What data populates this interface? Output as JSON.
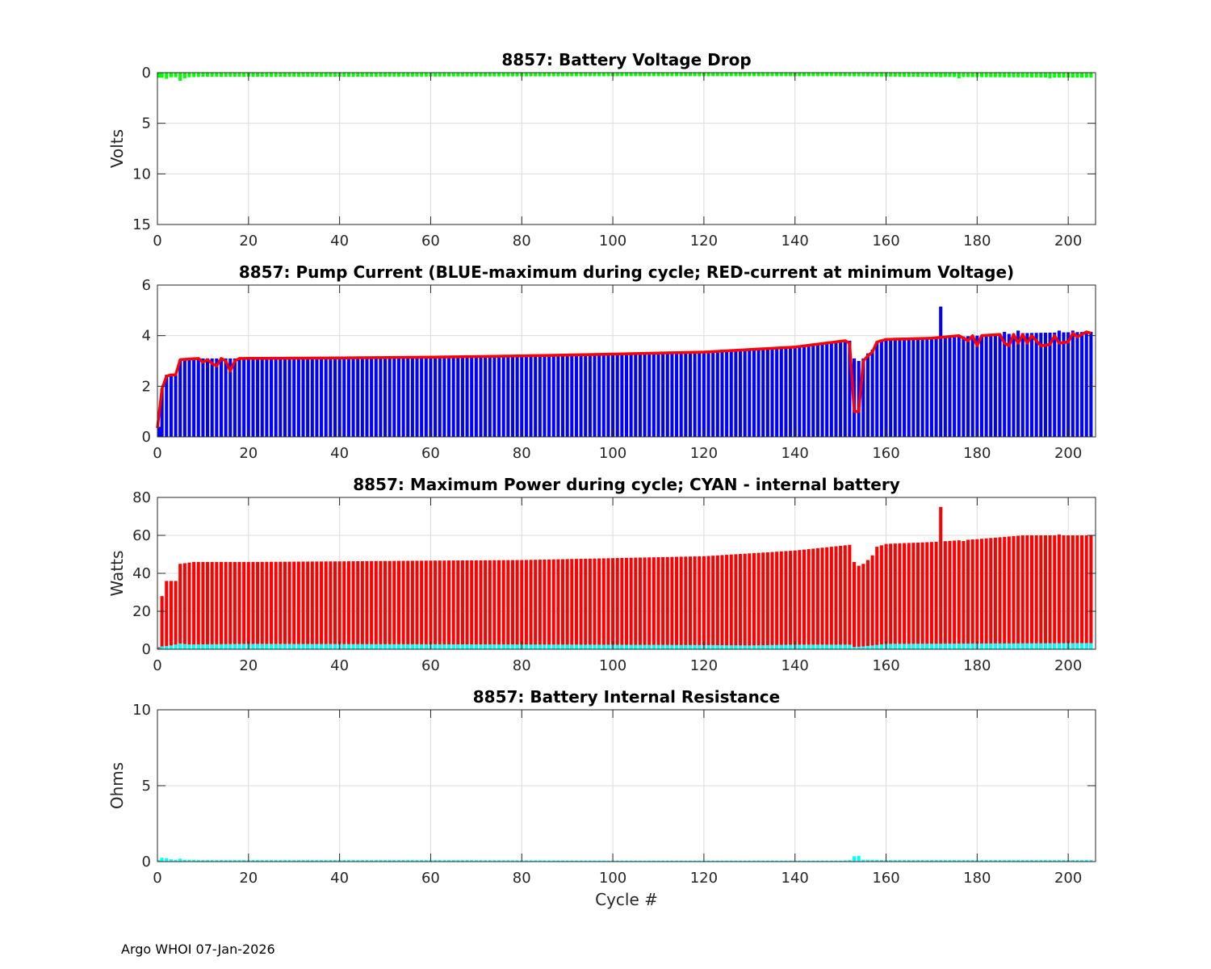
{
  "footer": "Argo WHOI 07-Jan-2026",
  "colors": {
    "green": "#00ff00",
    "blue": "#0000ff",
    "red": "#ff0000",
    "cyan": "#00ffff",
    "grid": "#dcdcdc",
    "axis": "#262626"
  },
  "chart_data": [
    {
      "type": "bar",
      "title": "8857: Battery Voltage Drop",
      "xlabel": "",
      "ylabel": "Volts",
      "xlim": [
        0,
        206
      ],
      "ylim": [
        0,
        15
      ],
      "y_reversed": true,
      "xticks": [
        0,
        20,
        40,
        60,
        80,
        100,
        120,
        140,
        160,
        180,
        200
      ],
      "yticks": [
        0,
        5,
        10,
        15
      ],
      "grid": true,
      "series_profile": {
        "name": "",
        "color": "green",
        "base": [
          [
            1,
            0.5
          ],
          [
            2,
            0.6
          ],
          [
            3,
            0.45
          ],
          [
            4,
            0.45
          ],
          [
            5,
            0.8
          ],
          [
            6,
            0.55
          ],
          [
            7,
            0.45
          ],
          [
            10,
            0.4
          ],
          [
            40,
            0.4
          ],
          [
            100,
            0.35
          ],
          [
            150,
            0.35
          ],
          [
            165,
            0.4
          ],
          [
            205,
            0.5
          ]
        ],
        "overrides": [
          [
            172,
            0.45
          ],
          [
            176,
            0.55
          ],
          [
            196,
            0.55
          ]
        ]
      }
    },
    {
      "type": "bar",
      "title": "8857: Pump Current (BLUE-maximum during cycle; RED-current at minimum Voltage)",
      "xlabel": "",
      "ylabel": "",
      "xlim": [
        0,
        206
      ],
      "ylim": [
        0,
        6
      ],
      "y_reversed": false,
      "xticks": [
        0,
        20,
        40,
        60,
        80,
        100,
        120,
        140,
        160,
        180,
        200
      ],
      "yticks": [
        0,
        2,
        4,
        6
      ],
      "grid": true,
      "bar_profile": {
        "name": "BLUE-maximum during cycle",
        "color": "blue",
        "base": [
          [
            0,
            0.4
          ],
          [
            1,
            1.9
          ],
          [
            2,
            2.45
          ],
          [
            3,
            2.45
          ],
          [
            4,
            2.45
          ],
          [
            5,
            3.05
          ],
          [
            8,
            3.1
          ],
          [
            20,
            3.1
          ],
          [
            40,
            3.12
          ],
          [
            60,
            3.15
          ],
          [
            80,
            3.2
          ],
          [
            100,
            3.27
          ],
          [
            120,
            3.35
          ],
          [
            140,
            3.55
          ],
          [
            152,
            3.8
          ],
          [
            153,
            3.1
          ],
          [
            154,
            3.0
          ],
          [
            155,
            3.1
          ],
          [
            156,
            3.3
          ],
          [
            157,
            3.45
          ],
          [
            158,
            3.75
          ],
          [
            160,
            3.85
          ],
          [
            170,
            3.9
          ],
          [
            180,
            4.0
          ],
          [
            190,
            4.1
          ],
          [
            205,
            4.15
          ]
        ],
        "overrides": [
          [
            172,
            5.15
          ],
          [
            186,
            4.15
          ],
          [
            189,
            4.2
          ],
          [
            198,
            4.2
          ],
          [
            201,
            4.2
          ]
        ]
      },
      "line_profile": {
        "name": "RED-current at minimum Voltage",
        "color": "red",
        "base": [
          [
            0,
            0.35
          ],
          [
            1,
            1.9
          ],
          [
            2,
            2.4
          ],
          [
            3,
            2.45
          ],
          [
            4,
            2.45
          ],
          [
            5,
            3.05
          ],
          [
            9,
            3.1
          ],
          [
            10,
            2.95
          ],
          [
            11,
            3.05
          ],
          [
            12,
            2.9
          ],
          [
            13,
            2.8
          ],
          [
            14,
            3.1
          ],
          [
            15,
            3.0
          ],
          [
            16,
            2.6
          ],
          [
            17,
            3.0
          ],
          [
            18,
            3.1
          ],
          [
            40,
            3.12
          ],
          [
            60,
            3.15
          ],
          [
            80,
            3.2
          ],
          [
            100,
            3.27
          ],
          [
            120,
            3.35
          ],
          [
            140,
            3.55
          ],
          [
            151,
            3.8
          ],
          [
            152,
            3.7
          ],
          [
            153,
            1.0
          ],
          [
            154,
            1.0
          ],
          [
            155,
            3.0
          ],
          [
            156,
            3.2
          ],
          [
            157,
            3.35
          ],
          [
            158,
            3.75
          ],
          [
            160,
            3.85
          ],
          [
            170,
            3.9
          ],
          [
            176,
            4.0
          ],
          [
            178,
            3.8
          ],
          [
            179,
            4.0
          ],
          [
            180,
            3.6
          ],
          [
            181,
            4.0
          ],
          [
            185,
            4.05
          ],
          [
            186,
            3.7
          ],
          [
            187,
            3.6
          ],
          [
            188,
            4.05
          ],
          [
            189,
            3.7
          ],
          [
            190,
            4.05
          ],
          [
            191,
            3.7
          ],
          [
            192,
            4.0
          ],
          [
            194,
            3.6
          ],
          [
            196,
            3.65
          ],
          [
            197,
            4.0
          ],
          [
            198,
            3.7
          ],
          [
            200,
            3.75
          ],
          [
            201,
            4.1
          ],
          [
            202,
            3.95
          ],
          [
            204,
            4.15
          ],
          [
            205,
            4.1
          ]
        ]
      }
    },
    {
      "type": "bar",
      "title": "8857: Maximum Power during cycle; CYAN - internal battery",
      "xlabel": "",
      "ylabel": "Watts",
      "xlim": [
        0,
        206
      ],
      "ylim": [
        0,
        80
      ],
      "y_reversed": false,
      "xticks": [
        0,
        20,
        40,
        60,
        80,
        100,
        120,
        140,
        160,
        180,
        200
      ],
      "yticks": [
        0,
        20,
        40,
        60,
        80
      ],
      "grid": true,
      "bar_profile": {
        "name": "Maximum Power",
        "color": "red",
        "base": [
          [
            0,
            1
          ],
          [
            1,
            28
          ],
          [
            2,
            36
          ],
          [
            3,
            36
          ],
          [
            4,
            36
          ],
          [
            5,
            45
          ],
          [
            8,
            46
          ],
          [
            20,
            46
          ],
          [
            40,
            46.3
          ],
          [
            60,
            46.7
          ],
          [
            80,
            47
          ],
          [
            100,
            48
          ],
          [
            120,
            49
          ],
          [
            140,
            52
          ],
          [
            152,
            55
          ],
          [
            153,
            46
          ],
          [
            154,
            44
          ],
          [
            155,
            45
          ],
          [
            156,
            47
          ],
          [
            157,
            49.5
          ],
          [
            158,
            54
          ],
          [
            160,
            55.5
          ],
          [
            170,
            56.5
          ],
          [
            180,
            58
          ],
          [
            190,
            60
          ],
          [
            205,
            60
          ]
        ],
        "overrides": [
          [
            172,
            75
          ],
          [
            177,
            57
          ],
          [
            198,
            60.5
          ]
        ]
      },
      "line_profile": {
        "name": "CYAN - internal battery",
        "color": "cyan",
        "base": [
          [
            0,
            0.5
          ],
          [
            1,
            1.5
          ],
          [
            3,
            2
          ],
          [
            5,
            3
          ],
          [
            7,
            2.5
          ],
          [
            20,
            2.8
          ],
          [
            40,
            2.7
          ],
          [
            80,
            2.5
          ],
          [
            120,
            2.2
          ],
          [
            130,
            2.0
          ],
          [
            140,
            2.4
          ],
          [
            152,
            2.4
          ],
          [
            153,
            1.2
          ],
          [
            155,
            1.5
          ],
          [
            160,
            2.8
          ],
          [
            180,
            3.0
          ],
          [
            205,
            3.2
          ]
        ]
      }
    },
    {
      "type": "bar",
      "title": "8857: Battery Internal Resistance",
      "xlabel": "Cycle #",
      "ylabel": "Ohms",
      "xlim": [
        0,
        206
      ],
      "ylim": [
        0,
        10
      ],
      "y_reversed": false,
      "xticks": [
        0,
        20,
        40,
        60,
        80,
        100,
        120,
        140,
        160,
        180,
        200
      ],
      "yticks": [
        0,
        5,
        10
      ],
      "grid": true,
      "series_profile": {
        "name": "",
        "color": "cyan",
        "base": [
          [
            0,
            0.1
          ],
          [
            1,
            0.25
          ],
          [
            2,
            0.22
          ],
          [
            3,
            0.15
          ],
          [
            4,
            0.12
          ],
          [
            5,
            0.2
          ],
          [
            6,
            0.12
          ],
          [
            10,
            0.1
          ],
          [
            60,
            0.1
          ],
          [
            100,
            0.07
          ],
          [
            150,
            0.07
          ],
          [
            152,
            0.1
          ],
          [
            153,
            0.35
          ],
          [
            154,
            0.38
          ],
          [
            155,
            0.12
          ],
          [
            160,
            0.1
          ],
          [
            205,
            0.1
          ]
        ]
      }
    }
  ]
}
